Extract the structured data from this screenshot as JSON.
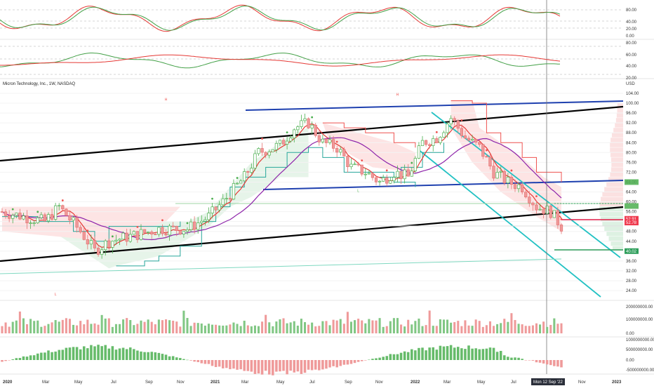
{
  "chart": {
    "title": "Micron Technology, Inc., 1W, NASDAQ",
    "currency_label": "USD",
    "cursor_date_label": "Mon 12 Sep '22",
    "colors": {
      "up": "#26a69a",
      "down": "#ef5350",
      "blue_channel": "#1e40af",
      "black_channel": "#000000",
      "cyan_channel": "#22c1c3",
      "ma_red": "#e53935",
      "ma_purple": "#8e24aa",
      "stoch_k": "#e53935",
      "stoch_d": "#43a047",
      "cursor": "#777777",
      "tag_red": "#ef3b4f",
      "tag_green": "#2e9e5b"
    },
    "price_axis_ticks": [
      "104.00",
      "100.00",
      "96.00",
      "92.00",
      "88.00",
      "84.00",
      "80.00",
      "76.00",
      "72.00",
      "68.00",
      "64.00",
      "60.00",
      "56.00",
      "52.00",
      "48.00",
      "44.00",
      "40.00",
      "36.00",
      "32.00",
      "28.00",
      "24.00"
    ],
    "price_tags": [
      {
        "label": "52.91",
        "color": "red"
      },
      {
        "label": "52.78",
        "color": "red"
      },
      {
        "label": "40.02",
        "color": "green"
      }
    ],
    "stoch_ticks": [
      "80.00",
      "40.00",
      "20.00",
      "0.00"
    ],
    "rsi_ticks": [
      "80.00",
      "60.00",
      "40.00",
      "20.00"
    ],
    "volume_ticks": [
      "200000000.00",
      "100000000.00",
      "0.00"
    ],
    "macd_ticks": [
      "1000000000.00",
      "500000000.00",
      "0.00",
      "-500000000.00"
    ],
    "time_labels": [
      "2020",
      "Mar",
      "May",
      "Jul",
      "Sep",
      "Nov",
      "2021",
      "Mar",
      "May",
      "Jul",
      "Sep",
      "Nov",
      "2022",
      "Mar",
      "May",
      "Jul",
      "Nov",
      "2023"
    ],
    "markers": [
      "H",
      "L",
      "L",
      "H"
    ]
  }
}
